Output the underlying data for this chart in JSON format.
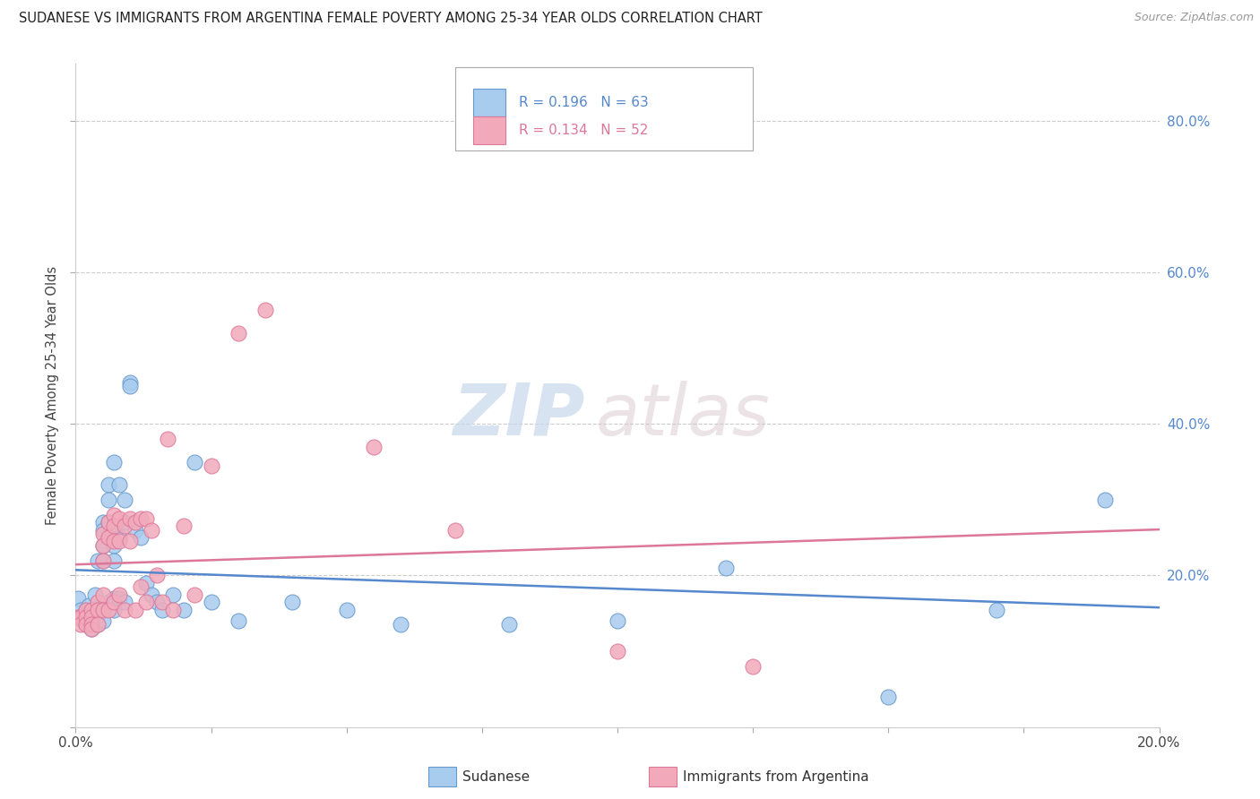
{
  "title": "SUDANESE VS IMMIGRANTS FROM ARGENTINA FEMALE POVERTY AMONG 25-34 YEAR OLDS CORRELATION CHART",
  "source": "Source: ZipAtlas.com",
  "ylabel": "Female Poverty Among 25-34 Year Olds",
  "xmin": 0.0,
  "xmax": 0.2,
  "ymin": 0.0,
  "ymax": 0.875,
  "blue_R": 0.196,
  "blue_N": 63,
  "pink_R": 0.134,
  "pink_N": 52,
  "blue_color": "#A8CCEE",
  "pink_color": "#F2AABB",
  "blue_edge_color": "#6699CC",
  "pink_edge_color": "#DD7799",
  "blue_line_color": "#5588CC",
  "pink_line_color": "#DD7799",
  "legend_label_blue": "Sudanese",
  "legend_label_pink": "Immigrants from Argentina",
  "watermark_zip": "ZIP",
  "watermark_atlas": "atlas",
  "grid_color": "#CCCCCC",
  "blue_scatter_x": [
    0.0005,
    0.001,
    0.001,
    0.0015,
    0.002,
    0.002,
    0.002,
    0.002,
    0.0025,
    0.003,
    0.003,
    0.003,
    0.003,
    0.003,
    0.0035,
    0.004,
    0.004,
    0.004,
    0.005,
    0.005,
    0.005,
    0.005,
    0.005,
    0.005,
    0.006,
    0.006,
    0.006,
    0.006,
    0.006,
    0.007,
    0.007,
    0.007,
    0.007,
    0.007,
    0.007,
    0.008,
    0.008,
    0.008,
    0.009,
    0.009,
    0.009,
    0.01,
    0.01,
    0.011,
    0.012,
    0.013,
    0.014,
    0.015,
    0.016,
    0.018,
    0.02,
    0.022,
    0.025,
    0.03,
    0.04,
    0.05,
    0.06,
    0.08,
    0.1,
    0.12,
    0.15,
    0.17,
    0.19
  ],
  "blue_scatter_y": [
    0.17,
    0.155,
    0.145,
    0.14,
    0.155,
    0.145,
    0.14,
    0.135,
    0.16,
    0.155,
    0.145,
    0.14,
    0.135,
    0.13,
    0.175,
    0.22,
    0.155,
    0.135,
    0.27,
    0.26,
    0.24,
    0.22,
    0.16,
    0.14,
    0.32,
    0.3,
    0.27,
    0.25,
    0.165,
    0.35,
    0.26,
    0.24,
    0.22,
    0.17,
    0.155,
    0.32,
    0.25,
    0.17,
    0.3,
    0.27,
    0.165,
    0.455,
    0.45,
    0.26,
    0.25,
    0.19,
    0.175,
    0.165,
    0.155,
    0.175,
    0.155,
    0.35,
    0.165,
    0.14,
    0.165,
    0.155,
    0.135,
    0.135,
    0.14,
    0.21,
    0.04,
    0.155,
    0.3
  ],
  "pink_scatter_x": [
    0.0005,
    0.001,
    0.001,
    0.002,
    0.002,
    0.002,
    0.003,
    0.003,
    0.003,
    0.003,
    0.004,
    0.004,
    0.004,
    0.005,
    0.005,
    0.005,
    0.005,
    0.005,
    0.006,
    0.006,
    0.006,
    0.007,
    0.007,
    0.007,
    0.007,
    0.008,
    0.008,
    0.008,
    0.009,
    0.009,
    0.01,
    0.01,
    0.011,
    0.011,
    0.012,
    0.012,
    0.013,
    0.013,
    0.014,
    0.015,
    0.016,
    0.017,
    0.018,
    0.02,
    0.022,
    0.025,
    0.03,
    0.035,
    0.055,
    0.07,
    0.1,
    0.125
  ],
  "pink_scatter_y": [
    0.145,
    0.145,
    0.135,
    0.155,
    0.145,
    0.135,
    0.155,
    0.145,
    0.135,
    0.13,
    0.165,
    0.155,
    0.135,
    0.255,
    0.24,
    0.22,
    0.175,
    0.155,
    0.27,
    0.25,
    0.155,
    0.28,
    0.265,
    0.245,
    0.165,
    0.275,
    0.245,
    0.175,
    0.265,
    0.155,
    0.275,
    0.245,
    0.27,
    0.155,
    0.275,
    0.185,
    0.275,
    0.165,
    0.26,
    0.2,
    0.165,
    0.38,
    0.155,
    0.265,
    0.175,
    0.345,
    0.52,
    0.55,
    0.37,
    0.26,
    0.1,
    0.08
  ]
}
